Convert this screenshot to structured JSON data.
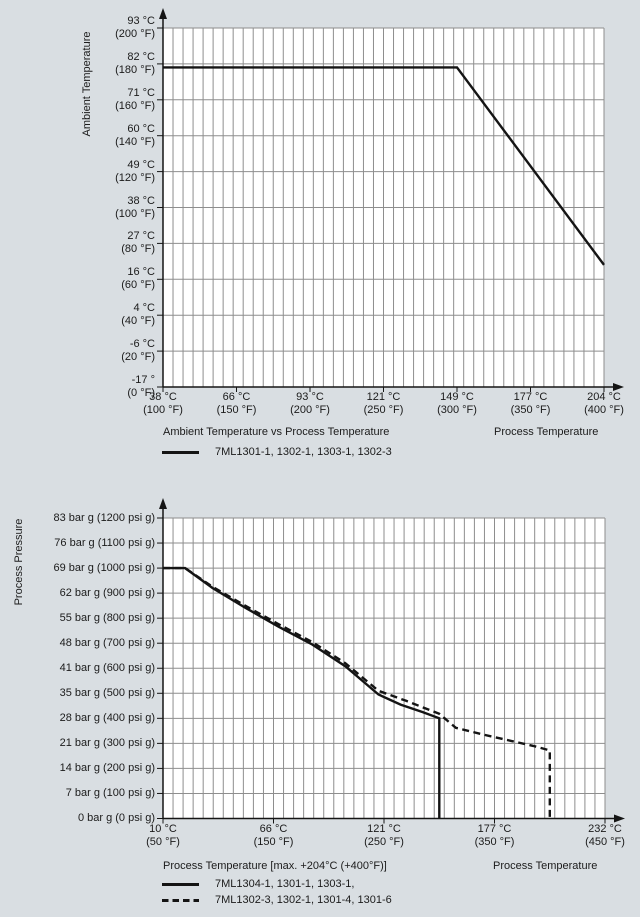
{
  "page": {
    "colors": {
      "background": "#d9dee2",
      "plot_background": "#ffffff",
      "grid": "#8e8e8e",
      "axis": "#151515",
      "series": "#141414",
      "text": "#1b1b1b"
    }
  },
  "chart_data": [
    {
      "type": "line",
      "title": "Ambient Temperature vs Process Temperature",
      "xlabel": "Process Temperature",
      "ylabel": "Ambient Temperature",
      "xlim": [
        100,
        400
      ],
      "ylim": [
        0,
        200
      ],
      "x_unit": "deg F (labels show deg C and deg F)",
      "y_unit": "deg F (labels show deg C and deg F)",
      "grid": "dense minor vertical lines, major horizontal lines at ticks",
      "legend_position": "below left",
      "x_ticks": [
        {
          "v": 100,
          "lines": [
            "38 °C",
            "(100 °F)"
          ]
        },
        {
          "v": 150,
          "lines": [
            "66 °C",
            "(150 °F)"
          ]
        },
        {
          "v": 200,
          "lines": [
            "93 °C",
            "(200 °F)"
          ]
        },
        {
          "v": 250,
          "lines": [
            "121 °C",
            "(250 °F)"
          ]
        },
        {
          "v": 300,
          "lines": [
            "149 °C",
            "(300 °F)"
          ]
        },
        {
          "v": 350,
          "lines": [
            "177 °C",
            "(350 °F)"
          ]
        },
        {
          "v": 400,
          "lines": [
            "204 °C",
            "(400 °F)"
          ]
        }
      ],
      "y_ticks": [
        {
          "v": 200,
          "lines": [
            "93 °C",
            "(200 °F)"
          ]
        },
        {
          "v": 180,
          "lines": [
            "82 °C",
            "(180 °F)"
          ]
        },
        {
          "v": 160,
          "lines": [
            "71 °C",
            "(160 °F)"
          ]
        },
        {
          "v": 140,
          "lines": [
            "60 °C",
            "(140 °F)"
          ]
        },
        {
          "v": 120,
          "lines": [
            "49 °C",
            "(120 °F)"
          ]
        },
        {
          "v": 100,
          "lines": [
            "38 °C",
            "(100 °F)"
          ]
        },
        {
          "v": 80,
          "lines": [
            "27 °C",
            "(80 °F)"
          ]
        },
        {
          "v": 60,
          "lines": [
            "16 °C",
            "(60 °F)"
          ]
        },
        {
          "v": 40,
          "lines": [
            "4 °C",
            "(40 °F)"
          ]
        },
        {
          "v": 20,
          "lines": [
            "-6 °C",
            "(20 °F)"
          ]
        },
        {
          "v": 0,
          "lines": [
            "-17 °",
            "(0 °F)"
          ]
        }
      ],
      "series": [
        {
          "name": "7ML1301-1, 1302-1, 1303-1, 1302-3",
          "style": "solid",
          "points": [
            [
              100,
              180
            ],
            [
              300,
              180
            ],
            [
              400,
              70
            ]
          ]
        }
      ]
    },
    {
      "type": "line",
      "title": "Process Temperature [max. +204°C (+400°F)]",
      "xlabel": "Process Temperature",
      "ylabel": "Process Pressure",
      "xlim": [
        50,
        450
      ],
      "ylim": [
        0,
        1200
      ],
      "x_unit": "deg F (labels show deg C and deg F)",
      "y_unit": "psi g (labels show bar g and psi g)",
      "grid": "dense minor vertical lines, major horizontal lines at ticks",
      "legend_position": "below left",
      "x_ticks": [
        {
          "v": 50,
          "lines": [
            "10 °C",
            "(50 °F)"
          ]
        },
        {
          "v": 150,
          "lines": [
            "66 °C",
            "(150 °F)"
          ]
        },
        {
          "v": 250,
          "lines": [
            "121 °C",
            "(250 °F)"
          ]
        },
        {
          "v": 350,
          "lines": [
            "177 °C",
            "(350 °F)"
          ]
        },
        {
          "v": 450,
          "lines": [
            "232 °C",
            "(450 °F)"
          ]
        }
      ],
      "y_ticks": [
        {
          "v": 1200,
          "lines": [
            "83 bar g (1200 psi g)"
          ]
        },
        {
          "v": 1100,
          "lines": [
            "76 bar g (1100 psi g)"
          ]
        },
        {
          "v": 1000,
          "lines": [
            "69 bar g (1000 psi g)"
          ]
        },
        {
          "v": 900,
          "lines": [
            "62 bar g (900 psi g)"
          ]
        },
        {
          "v": 800,
          "lines": [
            "55 bar g (800 psi g)"
          ]
        },
        {
          "v": 700,
          "lines": [
            "48 bar g (700 psi g)"
          ]
        },
        {
          "v": 600,
          "lines": [
            "41 bar g (600 psi g)"
          ]
        },
        {
          "v": 500,
          "lines": [
            "35 bar g (500 psi g)"
          ]
        },
        {
          "v": 400,
          "lines": [
            "28 bar g (400 psi g)"
          ]
        },
        {
          "v": 300,
          "lines": [
            "21 bar g (300 psi g)"
          ]
        },
        {
          "v": 200,
          "lines": [
            "14 bar g (200 psi g)"
          ]
        },
        {
          "v": 100,
          "lines": [
            "7 bar g (100 psi g)"
          ]
        },
        {
          "v": 0,
          "lines": [
            "0 bar g (0 psi g)"
          ]
        }
      ],
      "series": [
        {
          "name": "7ML1304-1, 1301-1, 1303-1,",
          "style": "solid",
          "points": [
            [
              50,
              1000
            ],
            [
              70,
              1000
            ],
            [
              95,
              920
            ],
            [
              125,
              840
            ],
            [
              155,
              765
            ],
            [
              185,
              695
            ],
            [
              215,
              608
            ],
            [
              245,
              495
            ],
            [
              265,
              455
            ],
            [
              285,
              425
            ],
            [
              300,
              400
            ],
            [
              300,
              0
            ]
          ]
        },
        {
          "name": "7ML1302-3, 1302-1, 1301-4, 1301-6",
          "style": "dashed",
          "points": [
            [
              50,
              1000
            ],
            [
              70,
              1000
            ],
            [
              95,
              925
            ],
            [
              125,
              848
            ],
            [
              155,
              775
            ],
            [
              185,
              705
            ],
            [
              215,
              620
            ],
            [
              245,
              510
            ],
            [
              270,
              470
            ],
            [
              300,
              418
            ],
            [
              315,
              362
            ],
            [
              340,
              335
            ],
            [
              365,
              310
            ],
            [
              385,
              290
            ],
            [
              400,
              272
            ],
            [
              400,
              0
            ]
          ]
        }
      ]
    }
  ]
}
